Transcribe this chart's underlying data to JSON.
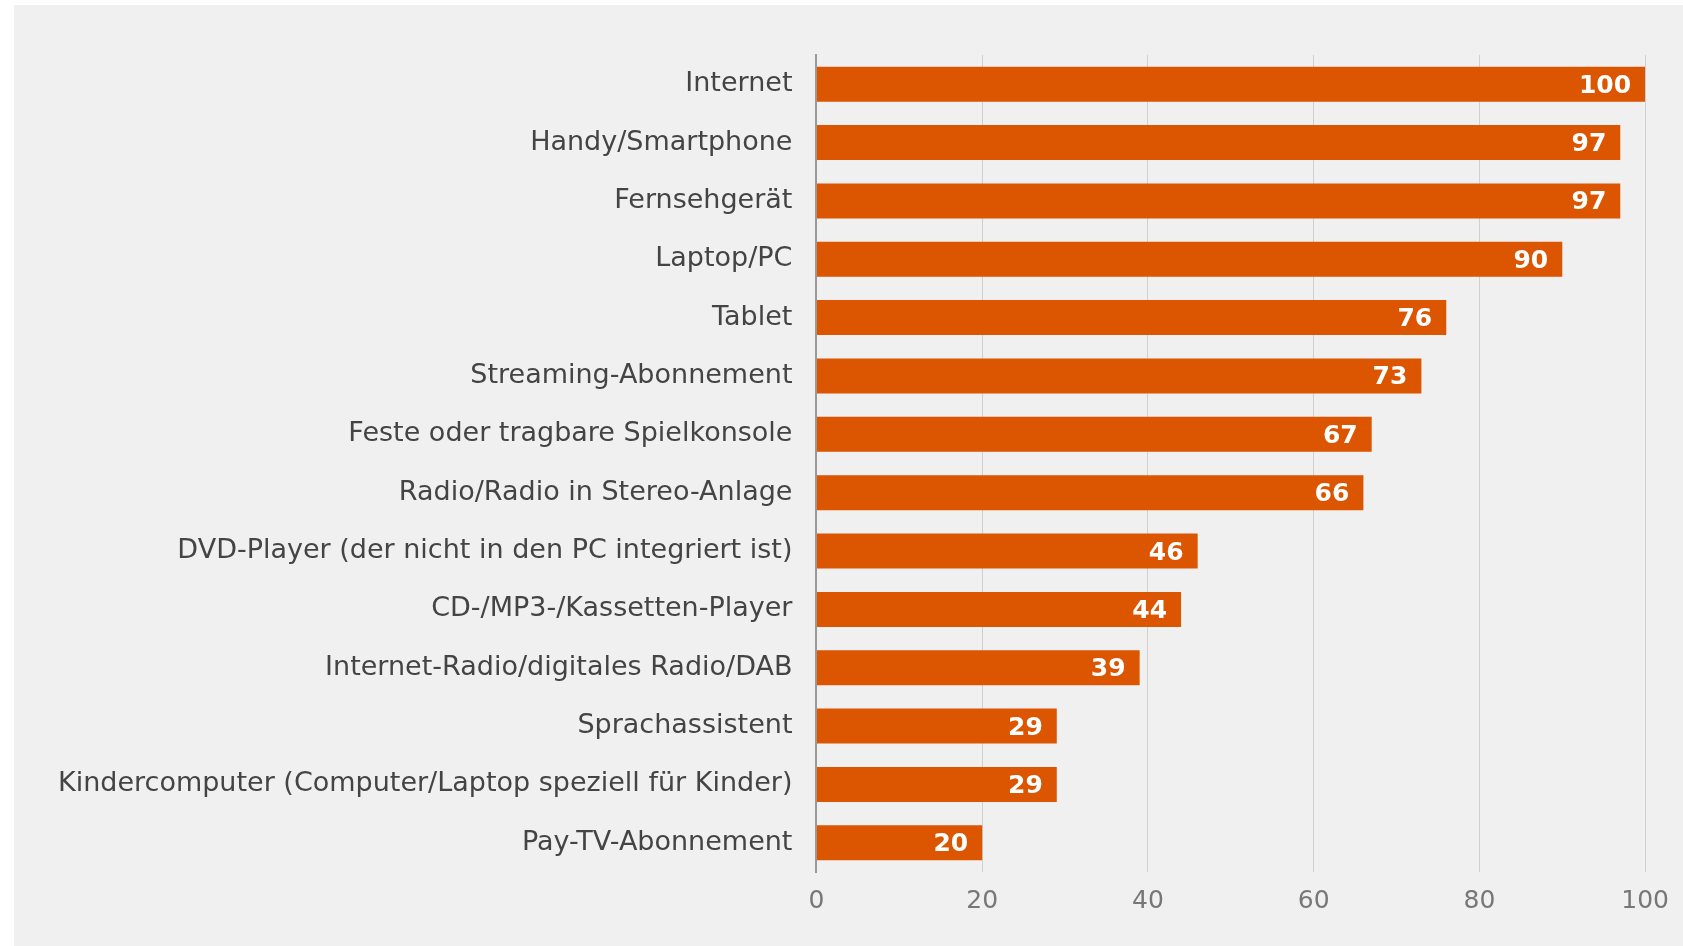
{
  "chart_data": {
    "type": "bar",
    "orientation": "horizontal",
    "categories": [
      "Internet",
      "Handy/Smartphone",
      "Fernsehgerät",
      "Laptop/PC",
      "Tablet",
      "Streaming-Abonnement",
      "Feste oder tragbare Spielkonsole",
      "Radio/Radio in Stereo-Anlage",
      "DVD-Player (der nicht in den PC integriert ist)",
      "CD-/MP3-/Kassetten-Player",
      "Internet-Radio/digitales Radio/DAB",
      "Sprachassistent",
      "Kindercomputer (Computer/Laptop speziell für Kinder)",
      "Pay-TV-Abonnement"
    ],
    "values": [
      100,
      97,
      97,
      90,
      76,
      73,
      67,
      66,
      46,
      44,
      39,
      29,
      29,
      20
    ],
    "color": "#dc5500",
    "xlim": [
      0,
      100
    ],
    "xticks": [
      0,
      20,
      40,
      60,
      80,
      100
    ],
    "grid": "x",
    "legend": false,
    "data_labels": true
  }
}
